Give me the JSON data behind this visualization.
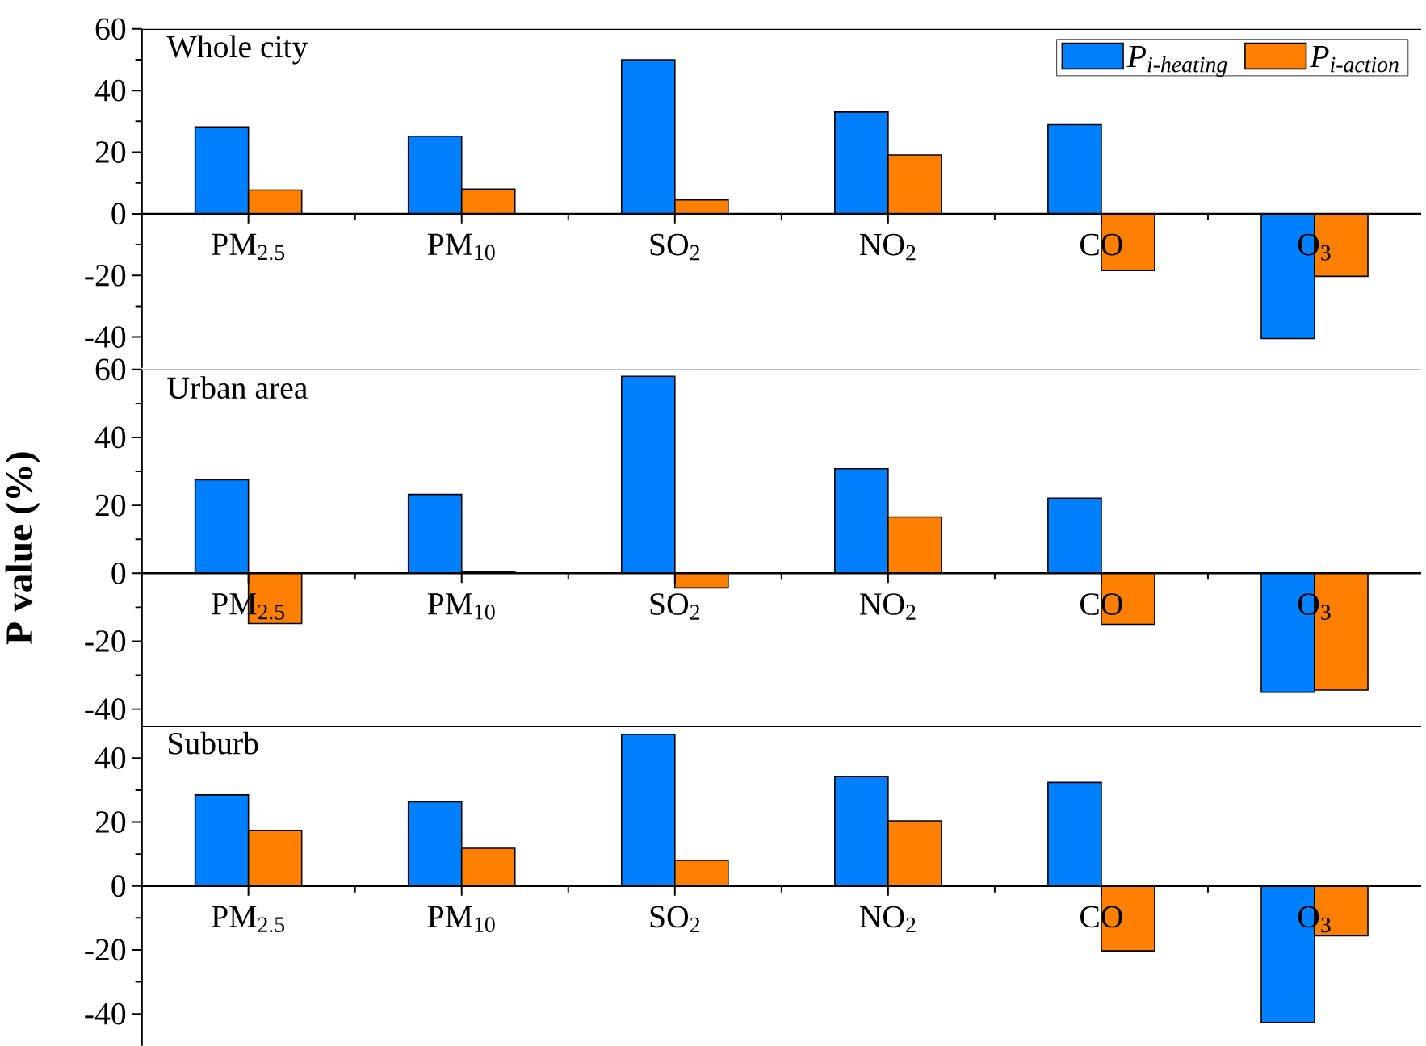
{
  "chart_data": [
    {
      "type": "bar",
      "title": "Whole city",
      "categories": [
        "PM$_{2.5}$",
        "PM$_{10}$",
        "SO$_{2}$",
        "NO$_{2}$",
        "CO",
        "O$_{3}$"
      ],
      "series": [
        {
          "name": "P$_{i-heating}$",
          "color": "#0080ff",
          "values": [
            28.2,
            25.2,
            50,
            33,
            28.9,
            -40.5
          ]
        },
        {
          "name": "P$_{i-action}$",
          "color": "#ff8000",
          "values": [
            7.7,
            8,
            4.5,
            19.1,
            -18.4,
            -20.3
          ]
        }
      ],
      "ylim": [
        -50,
        60
      ],
      "yticks": [
        -40,
        -20,
        0,
        20,
        40,
        60
      ],
      "legend": "top right"
    },
    {
      "type": "bar",
      "title": "Urban area",
      "ylabel": "P value (%)",
      "categories": [
        "PM$_{2.5}$",
        "PM$_{10}$",
        "SO$_{2}$",
        "NO$_{2}$",
        "CO",
        "O$_{3}$"
      ],
      "series": [
        {
          "color": "#0080ff",
          "values": [
            27.5,
            23.2,
            58,
            30.8,
            22.1,
            -35
          ]
        },
        {
          "color": "#ff8000",
          "values": [
            -14.8,
            0.5,
            -4.3,
            16.6,
            -15,
            -34.4
          ]
        }
      ],
      "ylim": [
        -45,
        60
      ],
      "yticks": [
        -40,
        -20,
        0,
        20,
        40,
        60
      ]
    },
    {
      "type": "bar",
      "title": "Suburb",
      "categories": [
        "PM$_{2.5}$",
        "PM$_{10}$",
        "SO$_{2}$",
        "NO$_{2}$",
        "CO",
        "O$_{3}$"
      ],
      "series": [
        {
          "color": "#0080ff",
          "values": [
            28.5,
            26.3,
            47.4,
            34.2,
            32.4,
            -42.7
          ]
        },
        {
          "color": "#ff8000",
          "values": [
            17.4,
            11.8,
            8,
            20.4,
            -20.3,
            -15.6
          ]
        }
      ],
      "ylim": [
        -50,
        50
      ],
      "yticks": [
        -40,
        -20,
        0,
        20,
        40
      ]
    }
  ]
}
